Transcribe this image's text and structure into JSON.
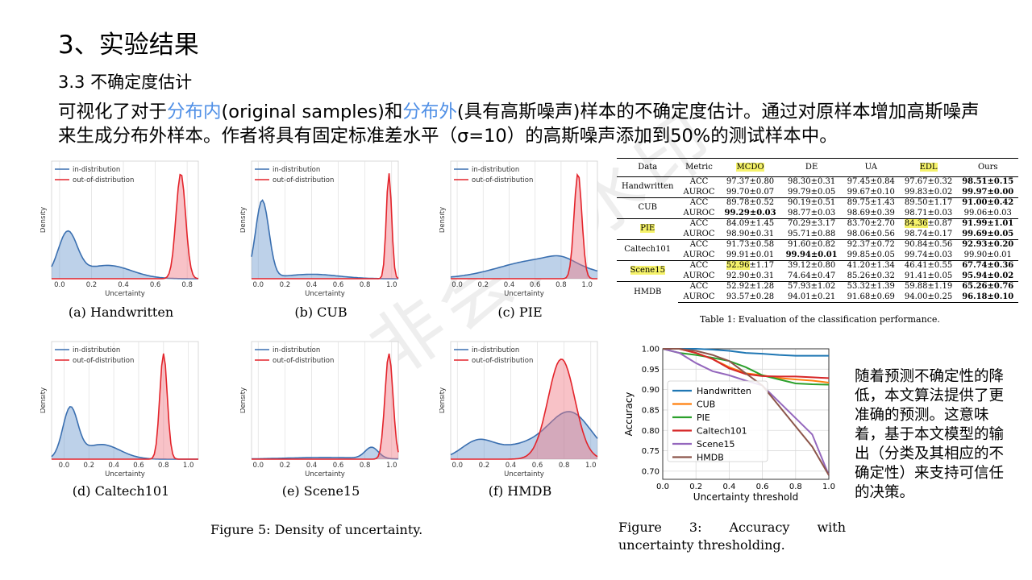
{
  "slide": {
    "title": "3、实验结果",
    "subtitle": "3.3 不确定度估计",
    "para_1": "可视化了对于",
    "para_hl1": "分布内",
    "para_2": "(original samples)和",
    "para_hl2": "分布外",
    "para_3": "(具有高斯噪声)样本的不确定度估计。通过对原样本增加高斯噪声来生成分布外样本。作者将具有固定标准差水平（σ=10）的高斯噪声添加到50%的测试样本中。",
    "side_text": "随着预测不确定性的降低，本文算法提供了更准确的预测。这意味着，基于本文模型的输出（分类及其相应的不确定性）来支持可信任的决策。",
    "watermark": "非会员水印",
    "accent_color": "#4f8fe6"
  },
  "density_legend": [
    "in-distribution",
    "out-of-distribution"
  ],
  "density_xlabel": "Uncertainty",
  "density_ylabel": "Density",
  "density_panels": [
    {
      "caption": "(a)  Handwritten",
      "ticks": [
        "0.0",
        "0.2",
        "0.4",
        "0.6",
        "0.8"
      ],
      "xmin": -0.05,
      "xmax": 0.87,
      "in_peak": 0.05,
      "in_tail": "long",
      "out_peak": 0.76
    },
    {
      "caption": "(b)  CUB",
      "ticks": [
        "0.0",
        "0.2",
        "0.4",
        "0.6",
        "0.8",
        "1.0"
      ],
      "xmin": -0.05,
      "xmax": 1.05,
      "in_peak": 0.03,
      "in_tail": "short",
      "out_peak": 0.98
    },
    {
      "caption": "(c)  PIE",
      "ticks": [
        "0.0",
        "0.2",
        "0.4",
        "0.6",
        "0.8",
        "1.0"
      ],
      "xmin": -0.05,
      "xmax": 1.08,
      "in_peak": 0.8,
      "in_tail": "flat",
      "out_peak": 0.93
    },
    {
      "caption": "(d)  Caltech101",
      "ticks": [
        "0.0",
        "0.2",
        "0.4",
        "0.6",
        "0.8",
        "1.0"
      ],
      "xmin": -0.1,
      "xmax": 1.08,
      "in_peak": 0.05,
      "in_tail": "long",
      "out_peak": 0.8
    },
    {
      "caption": "(e)  Scene15",
      "ticks": [
        "0.0",
        "0.2",
        "0.4",
        "0.6",
        "0.8",
        "1.0"
      ],
      "xmin": -0.05,
      "xmax": 1.05,
      "in_peak": 0.85,
      "in_tail": "bump",
      "out_peak": 0.98
    },
    {
      "caption": "(f)  HMDB",
      "ticks": [
        "0.0",
        "0.2",
        "0.4",
        "0.6",
        "0.8",
        "1.0"
      ],
      "xmin": -0.05,
      "xmax": 1.05,
      "in_peak": 0.85,
      "in_tail": "wide",
      "out_peak": 0.78
    }
  ],
  "figure5_caption": "Figure 5: Density of uncertainty.",
  "table": {
    "headers": [
      "Data",
      "Metric",
      "MCDO",
      "DE",
      "UA",
      "EDL",
      "Ours"
    ],
    "highlight_headers": [
      "MCDO",
      "EDL"
    ],
    "rows": [
      {
        "data": "Handwritten",
        "hl": false,
        "metrics": [
          {
            "m": "ACC",
            "v": [
              "97.37±0.80",
              "98.30±0.31",
              "97.45±0.84",
              "97.67±0.32",
              "98.51±0.15"
            ],
            "bold": [
              4
            ],
            "hlcell": []
          },
          {
            "m": "AUROC",
            "v": [
              "99.70±0.07",
              "99.79±0.05",
              "99.67±0.10",
              "99.83±0.02",
              "99.97±0.00"
            ],
            "bold": [
              4
            ],
            "hlcell": []
          }
        ]
      },
      {
        "data": "CUB",
        "hl": false,
        "metrics": [
          {
            "m": "ACC",
            "v": [
              "89.78±0.52",
              "90.19±0.51",
              "89.75±1.43",
              "89.50±1.17",
              "91.00±0.42"
            ],
            "bold": [
              4
            ],
            "hlcell": []
          },
          {
            "m": "AUROC",
            "v": [
              "99.29±0.03",
              "98.77±0.03",
              "98.69±0.39",
              "98.71±0.03",
              "99.06±0.03"
            ],
            "bold": [
              0
            ],
            "hlcell": []
          }
        ]
      },
      {
        "data": "PIE",
        "hl": true,
        "metrics": [
          {
            "m": "ACC",
            "v": [
              "84.09±1.45",
              "70.29±3.17",
              "83.70±2.70",
              "84.36±0.87",
              "91.99±1.01"
            ],
            "bold": [
              4
            ],
            "hlcell": [
              3
            ]
          },
          {
            "m": "AUROC",
            "v": [
              "98.90±0.31",
              "95.71±0.88",
              "98.06±0.56",
              "98.74±0.17",
              "99.69±0.05"
            ],
            "bold": [
              4
            ],
            "hlcell": []
          }
        ]
      },
      {
        "data": "Caltech101",
        "hl": false,
        "metrics": [
          {
            "m": "ACC",
            "v": [
              "91.73±0.58",
              "91.60±0.82",
              "92.37±0.72",
              "90.84±0.56",
              "92.93±0.20"
            ],
            "bold": [
              4
            ],
            "hlcell": []
          },
          {
            "m": "AUROC",
            "v": [
              "99.91±0.01",
              "99.94±0.01",
              "99.85±0.05",
              "99.74±0.03",
              "99.90±0.01"
            ],
            "bold": [
              1
            ],
            "hlcell": []
          }
        ]
      },
      {
        "data": "Scene15",
        "hl": true,
        "metrics": [
          {
            "m": "ACC",
            "v": [
              "52.96±1.17",
              "39.12±0.80",
              "41.20±1.34",
              "46.41±0.55",
              "67.74±0.36"
            ],
            "bold": [
              4
            ],
            "hlcell": [
              0
            ]
          },
          {
            "m": "AUROC",
            "v": [
              "92.90±0.31",
              "74.64±0.47",
              "85.26±0.32",
              "91.41±0.05",
              "95.94±0.02"
            ],
            "bold": [
              4
            ],
            "hlcell": []
          }
        ]
      },
      {
        "data": "HMDB",
        "hl": false,
        "metrics": [
          {
            "m": "ACC",
            "v": [
              "52.92±1.28",
              "57.93±1.02",
              "53.32±1.39",
              "59.88±1.19",
              "65.26±0.76"
            ],
            "bold": [
              4
            ],
            "hlcell": []
          },
          {
            "m": "AUROC",
            "v": [
              "93.57±0.28",
              "94.01±0.21",
              "91.68±0.69",
              "94.00±0.25",
              "96.18±0.10"
            ],
            "bold": [
              4
            ],
            "hlcell": []
          }
        ]
      }
    ],
    "caption": "Table 1: Evaluation of the classification performance."
  },
  "chart_data": {
    "type": "line",
    "xlabel": "Uncertainty threshold",
    "ylabel": "Accuracy",
    "xlim": [
      0.0,
      1.0
    ],
    "ylim": [
      0.68,
      1.0
    ],
    "xticks": [
      "0.0",
      "0.2",
      "0.4",
      "0.6",
      "0.8",
      "1.0"
    ],
    "yticks": [
      "0.70",
      "0.75",
      "0.80",
      "0.85",
      "0.90",
      "0.95",
      "1.00"
    ],
    "grid": true,
    "legend_position": "center-left",
    "x": [
      0.0,
      0.1,
      0.2,
      0.3,
      0.4,
      0.5,
      0.6,
      0.7,
      0.8,
      0.9,
      1.0
    ],
    "series": [
      {
        "name": "Handwritten",
        "color": "#1f77b4",
        "values": [
          1.0,
          1.0,
          1.0,
          0.998,
          0.995,
          0.99,
          0.988,
          0.985,
          0.983,
          0.983,
          0.983
        ]
      },
      {
        "name": "CUB",
        "color": "#ff7f0e",
        "values": [
          1.0,
          1.0,
          0.99,
          0.975,
          0.955,
          0.94,
          0.935,
          0.928,
          0.925,
          0.922,
          0.917
        ]
      },
      {
        "name": "PIE",
        "color": "#2ca02c",
        "values": [
          1.0,
          0.99,
          0.985,
          0.978,
          0.97,
          0.955,
          0.935,
          0.925,
          0.915,
          0.913,
          0.912
        ]
      },
      {
        "name": "Caltech101",
        "color": "#d62728",
        "values": [
          1.0,
          1.0,
          0.99,
          0.975,
          0.952,
          0.938,
          0.933,
          0.932,
          0.932,
          0.93,
          0.928
        ]
      },
      {
        "name": "Scene15",
        "color": "#9467bd",
        "values": [
          1.0,
          0.99,
          0.965,
          0.945,
          0.935,
          0.922,
          0.91,
          0.87,
          0.83,
          0.79,
          0.69
        ]
      },
      {
        "name": "HMDB",
        "color": "#8c564b",
        "values": [
          1.0,
          1.0,
          0.995,
          0.985,
          0.97,
          0.94,
          0.91,
          0.86,
          0.81,
          0.76,
          0.69
        ]
      }
    ]
  },
  "figure3_caption": "Figure 3:  Accuracy with uncertainty thresholding."
}
